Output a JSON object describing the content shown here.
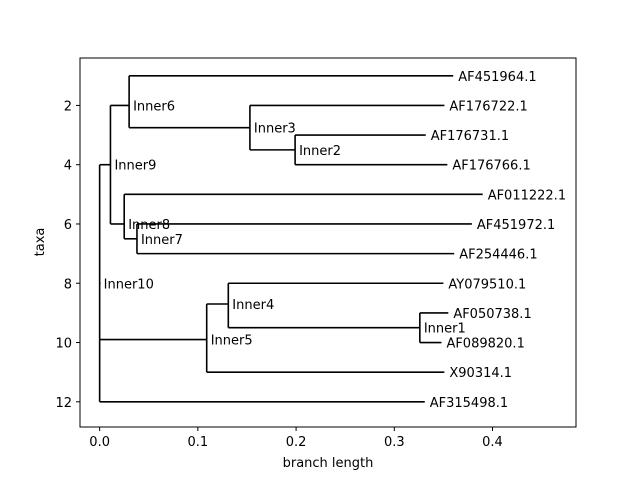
{
  "chart_data": {
    "type": "tree",
    "xlabel": "branch length",
    "ylabel": "taxa",
    "xlim": [
      -0.02,
      0.485
    ],
    "ylim": [
      12.85,
      0.4
    ],
    "xticks": [
      0.0,
      0.1,
      0.2,
      0.3,
      0.4
    ],
    "xtick_labels": [
      "0.0",
      "0.1",
      "0.2",
      "0.3",
      "0.4"
    ],
    "yticks": [
      2,
      4,
      6,
      8,
      10,
      12
    ],
    "ytick_labels": [
      "2",
      "4",
      "6",
      "8",
      "10",
      "12"
    ],
    "nodes": [
      {
        "id": "n10",
        "label": "Inner10",
        "x": 0.0,
        "y": 8.0
      },
      {
        "id": "n9",
        "label": "Inner9",
        "x": 0.011,
        "y": 4.0
      },
      {
        "id": "n6",
        "label": "Inner6",
        "x": 0.03,
        "y": 2.0
      },
      {
        "id": "n3",
        "label": "Inner3",
        "x": 0.153,
        "y": 2.75
      },
      {
        "id": "n2",
        "label": "Inner2",
        "x": 0.199,
        "y": 3.5
      },
      {
        "id": "n8",
        "label": "Inner8",
        "x": 0.025,
        "y": 6.0
      },
      {
        "id": "n7",
        "label": "Inner7",
        "x": 0.038,
        "y": 6.5
      },
      {
        "id": "n5",
        "label": "Inner5",
        "x": 0.109,
        "y": 9.9
      },
      {
        "id": "n4",
        "label": "Inner4",
        "x": 0.131,
        "y": 8.7
      },
      {
        "id": "n1",
        "label": "Inner1",
        "x": 0.326,
        "y": 9.5
      }
    ],
    "leaves": [
      {
        "label": "AF451964.1",
        "x": 0.36,
        "y": 1
      },
      {
        "label": "AF176722.1",
        "x": 0.351,
        "y": 2
      },
      {
        "label": "AF176731.1",
        "x": 0.332,
        "y": 3
      },
      {
        "label": "AF176766.1",
        "x": 0.354,
        "y": 4
      },
      {
        "label": "AF011222.1",
        "x": 0.39,
        "y": 5
      },
      {
        "label": "AF451972.1",
        "x": 0.379,
        "y": 6
      },
      {
        "label": "AF254446.1",
        "x": 0.361,
        "y": 7
      },
      {
        "label": "AY079510.1",
        "x": 0.35,
        "y": 8
      },
      {
        "label": "AF050738.1",
        "x": 0.355,
        "y": 9
      },
      {
        "label": "AF089820.1",
        "x": 0.348,
        "y": 10
      },
      {
        "label": "X90314.1",
        "x": 0.351,
        "y": 11
      },
      {
        "label": "AF315498.1",
        "x": 0.331,
        "y": 12
      }
    ],
    "edges": [
      [
        "n10",
        "n9"
      ],
      [
        "n10",
        "n5"
      ],
      [
        "n10",
        "AF315498.1"
      ],
      [
        "n9",
        "n6"
      ],
      [
        "n9",
        "n8"
      ],
      [
        "n6",
        "AF451964.1"
      ],
      [
        "n6",
        "n3"
      ],
      [
        "n3",
        "AF176722.1"
      ],
      [
        "n3",
        "n2"
      ],
      [
        "n2",
        "AF176731.1"
      ],
      [
        "n2",
        "AF176766.1"
      ],
      [
        "n8",
        "AF011222.1"
      ],
      [
        "n8",
        "n7"
      ],
      [
        "n7",
        "AF451972.1"
      ],
      [
        "n7",
        "AF254446.1"
      ],
      [
        "n5",
        "n4"
      ],
      [
        "n5",
        "X90314.1"
      ],
      [
        "n4",
        "AY079510.1"
      ],
      [
        "n4",
        "n1"
      ],
      [
        "n1",
        "AF050738.1"
      ],
      [
        "n1",
        "AF089820.1"
      ]
    ]
  }
}
